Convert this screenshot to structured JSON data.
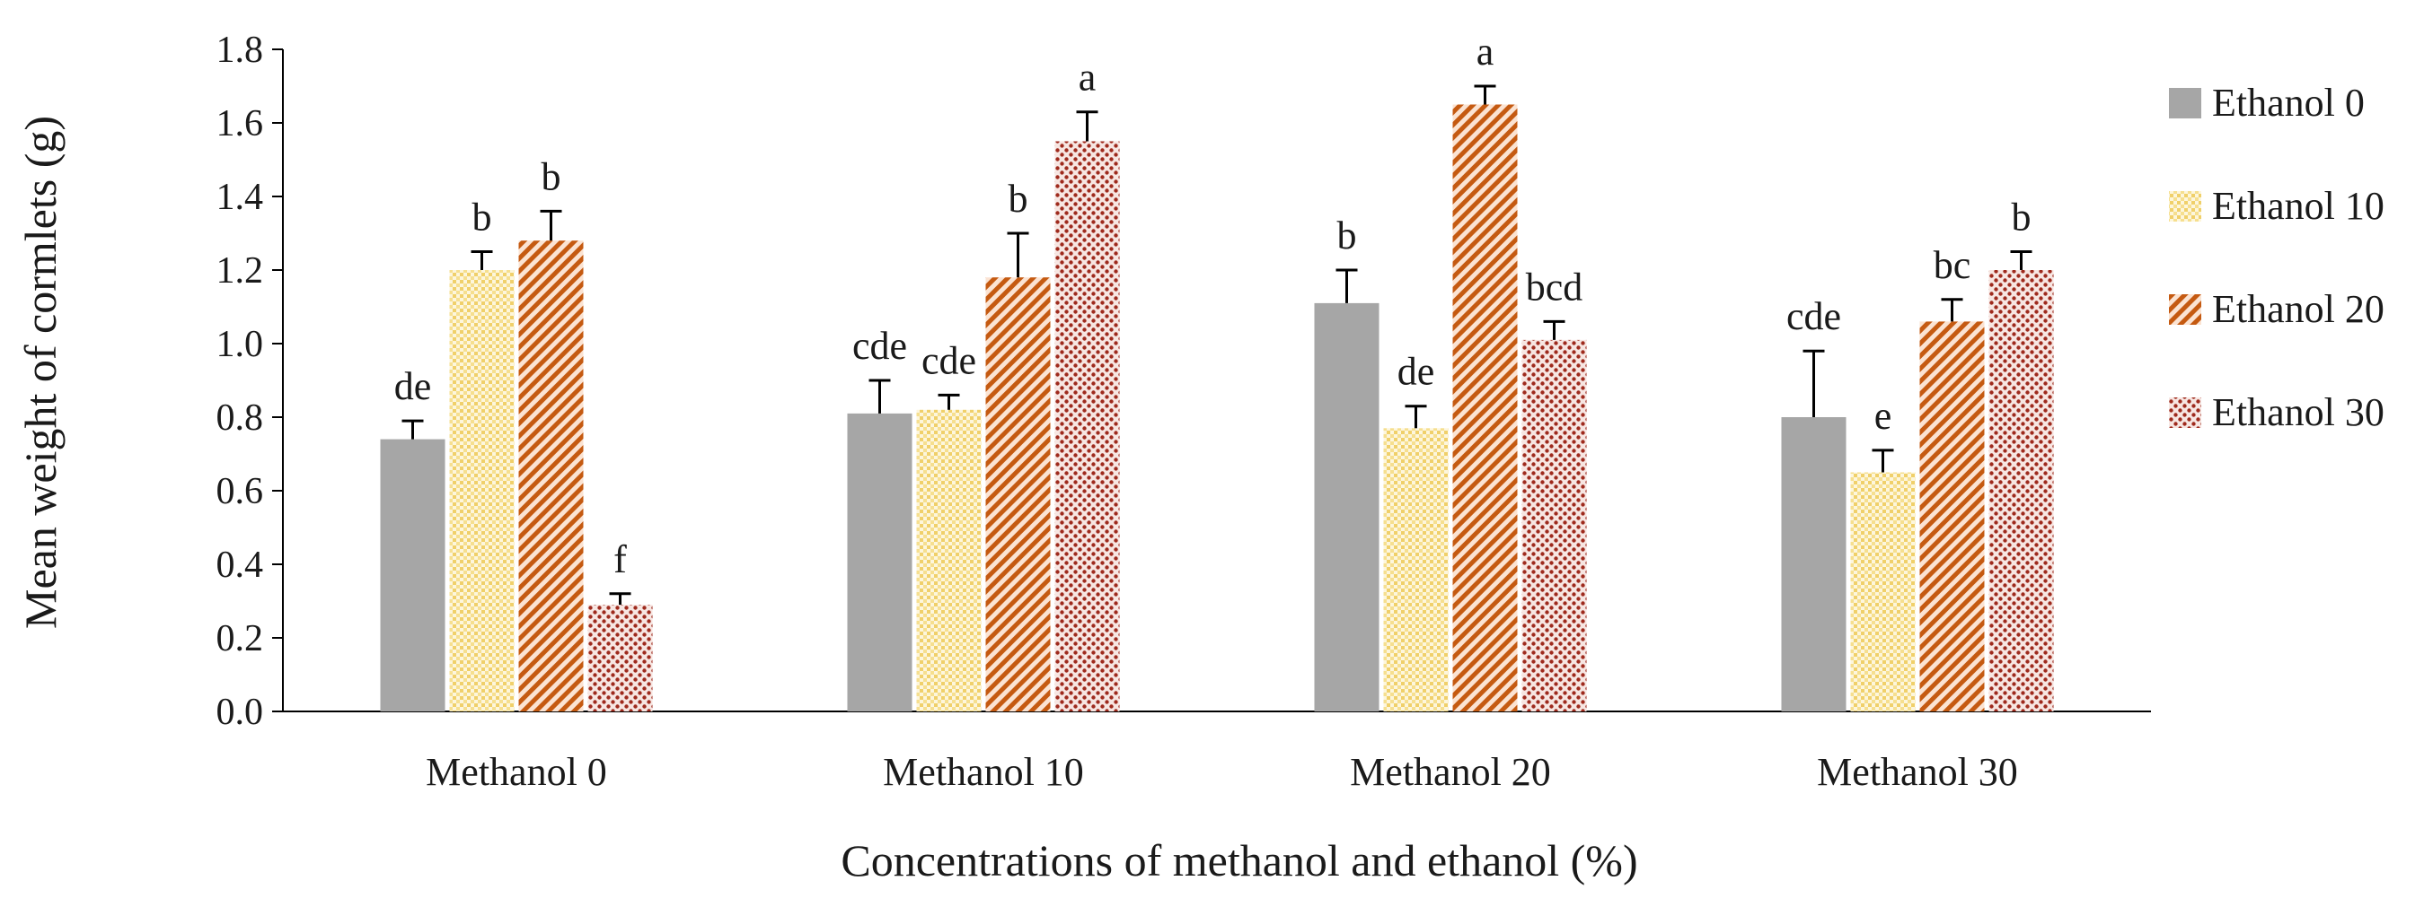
{
  "chart_data": {
    "type": "bar",
    "xlabel": "Concentrations of methanol and ethanol (%)",
    "ylabel": "Mean weight of cormlets (g)",
    "ylim": [
      0,
      1.8
    ],
    "ytick_step": 0.2,
    "yticks": [
      "0.0",
      "0.2",
      "0.4",
      "0.6",
      "0.8",
      "1.0",
      "1.2",
      "1.4",
      "1.6",
      "1.8"
    ],
    "grid": false,
    "legend_position": "right",
    "categories": [
      "Methanol 0",
      "Methanol 10",
      "Methanol 20",
      "Methanol 30"
    ],
    "series": [
      {
        "name": "Ethanol 0",
        "color": "#a6a6a6",
        "pattern": "solid",
        "values": [
          0.74,
          0.81,
          1.11,
          0.8
        ],
        "errors": [
          0.05,
          0.09,
          0.09,
          0.18
        ],
        "labels": [
          "de",
          "cde",
          "b",
          "cde"
        ]
      },
      {
        "name": "Ethanol 10",
        "color": "#f2d77a",
        "pattern": "dotted-grid",
        "values": [
          1.2,
          0.82,
          0.77,
          0.65
        ],
        "errors": [
          0.05,
          0.04,
          0.06,
          0.06
        ],
        "labels": [
          "b",
          "cde",
          "de",
          "e"
        ]
      },
      {
        "name": "Ethanol 20",
        "color": "#c55a11",
        "pattern": "diagonal-stripes",
        "values": [
          1.28,
          1.18,
          1.65,
          1.06
        ],
        "errors": [
          0.08,
          0.12,
          0.05,
          0.06
        ],
        "labels": [
          "b",
          "b",
          "a",
          "bc"
        ]
      },
      {
        "name": "Ethanol 30",
        "color": "#9e2a1d",
        "pattern": "dots",
        "values": [
          0.29,
          1.55,
          1.01,
          1.2
        ],
        "errors": [
          0.03,
          0.08,
          0.05,
          0.05
        ],
        "labels": [
          "f",
          "a",
          "bcd",
          "b"
        ]
      }
    ]
  }
}
